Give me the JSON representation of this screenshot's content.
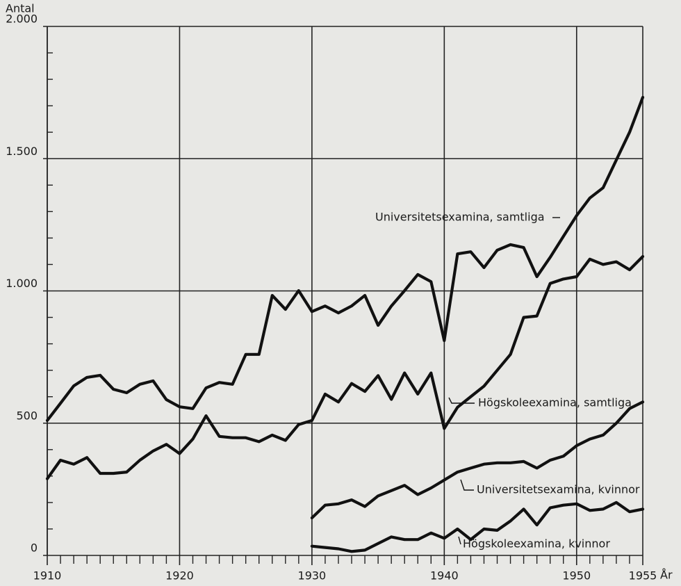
{
  "chart_data": {
    "type": "line",
    "y_label": "Antal",
    "x_label": "År",
    "x": [
      1910,
      1911,
      1912,
      1913,
      1914,
      1915,
      1916,
      1917,
      1918,
      1919,
      1920,
      1921,
      1922,
      1923,
      1924,
      1925,
      1926,
      1927,
      1928,
      1929,
      1930,
      1931,
      1932,
      1933,
      1934,
      1935,
      1936,
      1937,
      1938,
      1939,
      1940,
      1941,
      1942,
      1943,
      1944,
      1945,
      1946,
      1947,
      1948,
      1949,
      1950,
      1951,
      1952,
      1953,
      1954,
      1955
    ],
    "xlim": [
      1910,
      1955
    ],
    "xticks": [
      1910,
      1920,
      1930,
      1940,
      1950,
      1955
    ],
    "xminorticks": [
      1911,
      1912,
      1913,
      1914,
      1915,
      1916,
      1917,
      1918,
      1919,
      1921,
      1922,
      1923,
      1924,
      1925,
      1926,
      1927,
      1928,
      1929,
      1931,
      1932,
      1933,
      1934,
      1935,
      1936,
      1937,
      1938,
      1939,
      1941,
      1942,
      1943,
      1944,
      1945,
      1946,
      1947,
      1948,
      1949,
      1951,
      1952,
      1953,
      1954
    ],
    "ylim": [
      0,
      2000
    ],
    "yticks": [
      0,
      500,
      {
        "value": 1000,
        "label": "1.000"
      },
      {
        "value": 1500,
        "label": "1.500"
      },
      {
        "value": 2000,
        "label": "2.000"
      }
    ],
    "yminorticks": [
      100,
      200,
      300,
      400,
      600,
      700,
      800,
      900,
      1100,
      1200,
      1300,
      1400,
      1600,
      1700,
      1800,
      1900
    ],
    "grid": true,
    "color": "#111111",
    "series": [
      {
        "name": "Universitetsexamina, samtliga",
        "values": [
          510,
          575,
          641,
          673,
          681,
          628,
          615,
          647,
          660,
          589,
          562,
          555,
          633,
          654,
          647,
          760,
          760,
          983,
          930,
          1001,
          922,
          943,
          917,
          943,
          983,
          870,
          943,
          1001,
          1062,
          1035,
          812,
          1140,
          1148,
          1088,
          1154,
          1175,
          1164,
          1054,
          1127,
          1206,
          1285,
          1351,
          1390,
          1495,
          1600,
          1732
        ]
      },
      {
        "name": "Högskoleexamina, samtliga",
        "values": [
          290,
          360,
          345,
          370,
          310,
          310,
          315,
          360,
          395,
          420,
          385,
          440,
          528,
          450,
          445,
          445,
          430,
          455,
          435,
          495,
          510,
          610,
          580,
          650,
          620,
          680,
          590,
          690,
          610,
          690,
          480,
          560,
          600,
          640,
          700,
          760,
          900,
          905,
          1028,
          1045,
          1054,
          1120,
          1100,
          1110,
          1080,
          1130
        ]
      },
      {
        "name": "Universitetsexamina, kvinnor",
        "values": [
          null,
          null,
          null,
          null,
          null,
          null,
          null,
          null,
          null,
          null,
          null,
          null,
          null,
          null,
          null,
          null,
          null,
          null,
          null,
          null,
          142,
          190,
          195,
          210,
          185,
          225,
          245,
          265,
          230,
          255,
          285,
          315,
          330,
          345,
          350,
          350,
          355,
          330,
          360,
          375,
          415,
          440,
          455,
          500,
          555,
          580
        ]
      },
      {
        "name": "Högskoleexamina, kvinnor",
        "values": [
          null,
          null,
          null,
          null,
          null,
          null,
          null,
          null,
          null,
          null,
          null,
          null,
          null,
          null,
          null,
          null,
          null,
          null,
          null,
          null,
          35,
          30,
          25,
          15,
          20,
          45,
          70,
          60,
          60,
          85,
          65,
          100,
          60,
          100,
          95,
          130,
          175,
          115,
          180,
          190,
          195,
          170,
          175,
          200,
          165,
          175
        ]
      }
    ]
  }
}
